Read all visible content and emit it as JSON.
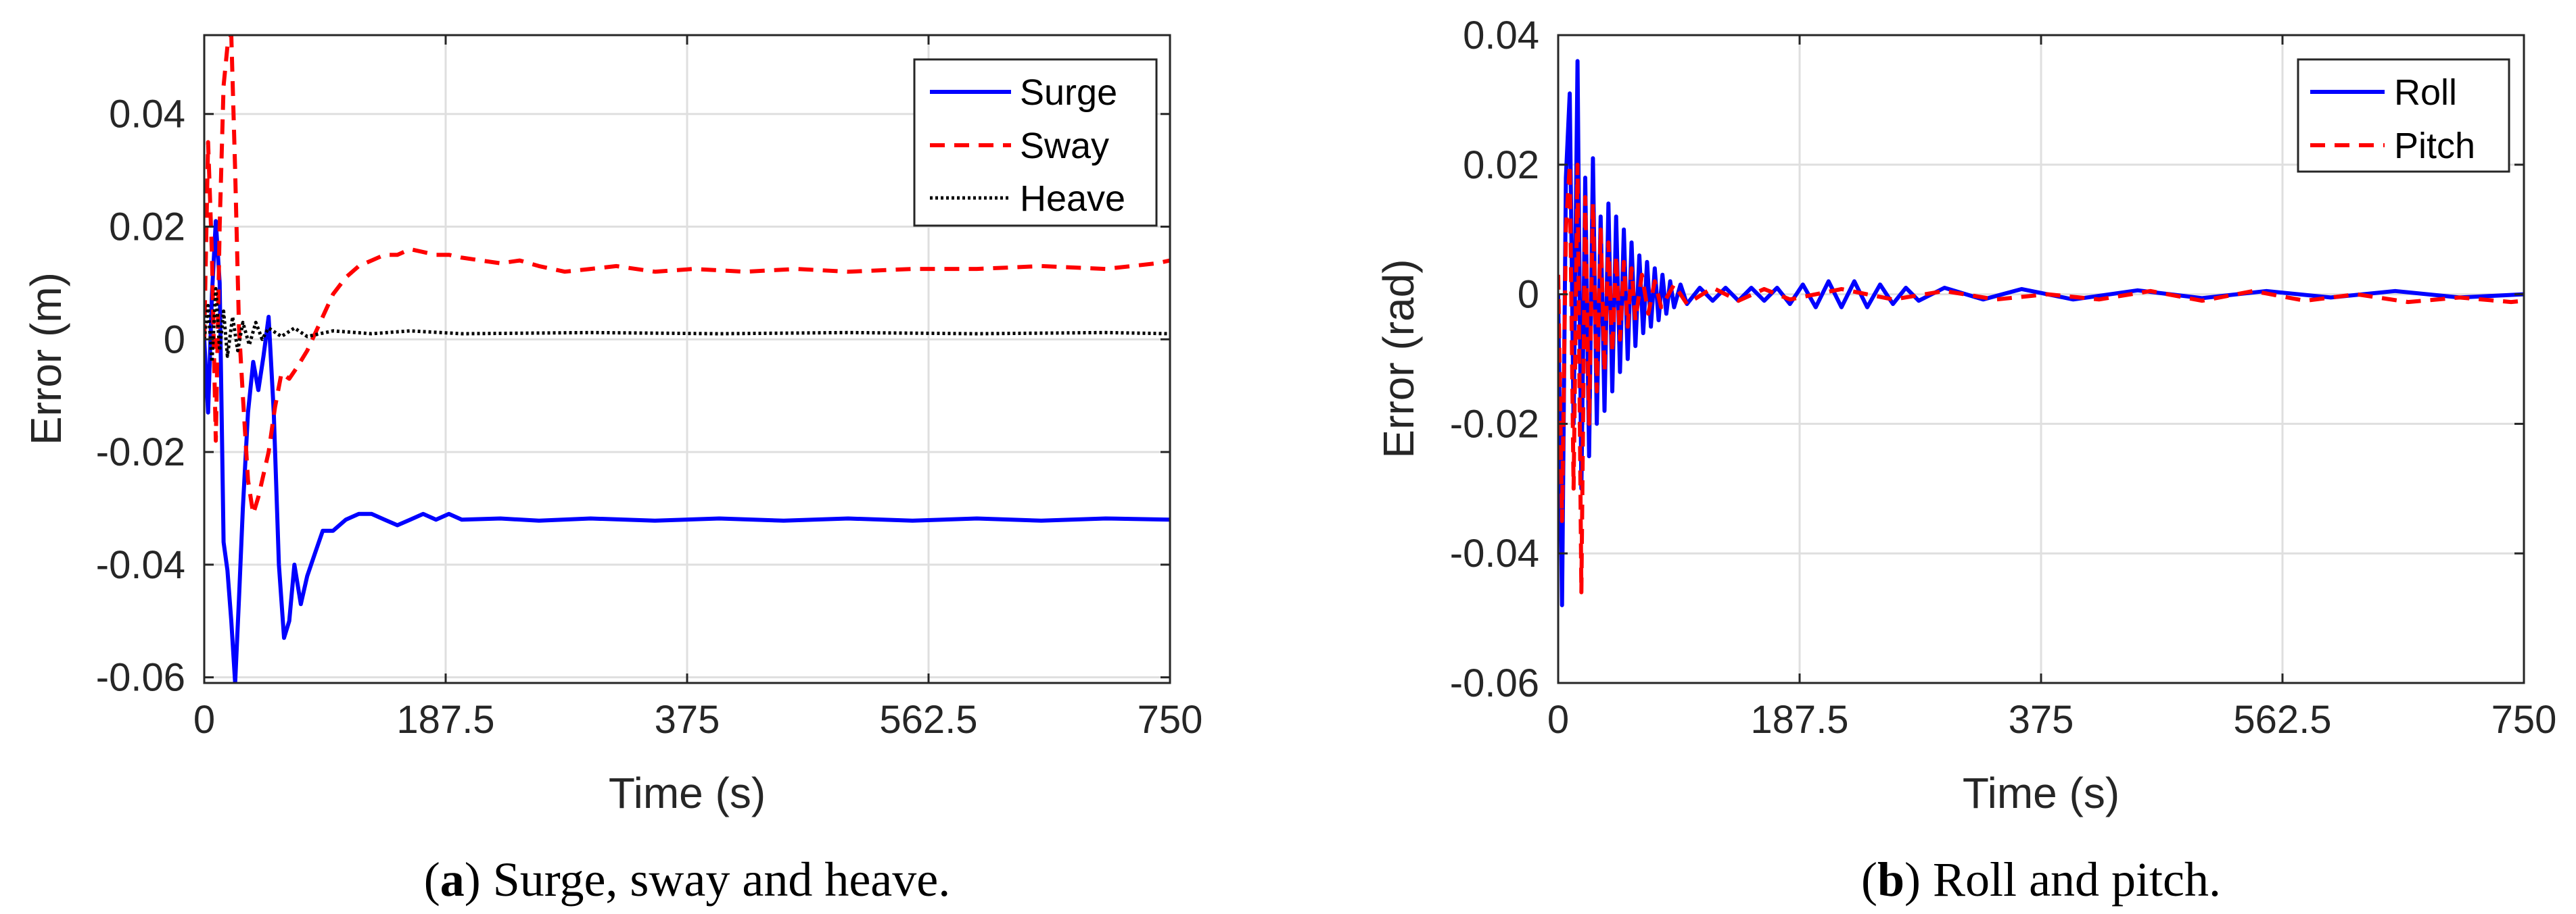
{
  "chart_data": [
    {
      "type": "line",
      "title": "",
      "xlabel": "Time (s)",
      "ylabel": "Error (m)",
      "xlim": [
        0,
        750
      ],
      "ylim": [
        -0.061,
        0.054
      ],
      "xticks": [
        0,
        187.5,
        375,
        562.5,
        750
      ],
      "xticklabels": [
        "0",
        "187.5",
        "375",
        "562.5",
        "750"
      ],
      "yticks": [
        -0.06,
        -0.04,
        -0.02,
        0,
        0.02,
        0.04
      ],
      "yticklabels": [
        "-0.06",
        "-0.04",
        "-0.02",
        "0",
        "0.02",
        "0.04"
      ],
      "grid": true,
      "legend_position": "top-right",
      "caption_tag": "a",
      "caption_text": " Surge, sway and heave.",
      "series": [
        {
          "name": "Surge",
          "color": "#0000ff",
          "style": "solid",
          "points": [
            [
              0,
              0
            ],
            [
              3,
              -0.013
            ],
            [
              6,
              0.008
            ],
            [
              9,
              0.021
            ],
            [
              12,
              0.01
            ],
            [
              15,
              -0.036
            ],
            [
              18,
              -0.041
            ],
            [
              21,
              -0.05
            ],
            [
              24,
              -0.061
            ],
            [
              27,
              -0.046
            ],
            [
              30,
              -0.03
            ],
            [
              34,
              -0.013
            ],
            [
              38,
              -0.004
            ],
            [
              42,
              -0.009
            ],
            [
              46,
              -0.003
            ],
            [
              50,
              0.004
            ],
            [
              54,
              -0.013
            ],
            [
              58,
              -0.04
            ],
            [
              62,
              -0.053
            ],
            [
              66,
              -0.05
            ],
            [
              70,
              -0.04
            ],
            [
              75,
              -0.047
            ],
            [
              80,
              -0.042
            ],
            [
              86,
              -0.038
            ],
            [
              92,
              -0.034
            ],
            [
              100,
              -0.034
            ],
            [
              110,
              -0.032
            ],
            [
              120,
              -0.031
            ],
            [
              130,
              -0.031
            ],
            [
              140,
              -0.032
            ],
            [
              150,
              -0.033
            ],
            [
              160,
              -0.032
            ],
            [
              170,
              -0.031
            ],
            [
              180,
              -0.032
            ],
            [
              190,
              -0.031
            ],
            [
              200,
              -0.032
            ],
            [
              230,
              -0.0318
            ],
            [
              260,
              -0.0322
            ],
            [
              300,
              -0.0318
            ],
            [
              350,
              -0.0322
            ],
            [
              400,
              -0.0318
            ],
            [
              450,
              -0.0322
            ],
            [
              500,
              -0.0318
            ],
            [
              550,
              -0.0322
            ],
            [
              600,
              -0.0318
            ],
            [
              650,
              -0.0322
            ],
            [
              700,
              -0.0318
            ],
            [
              750,
              -0.032
            ]
          ]
        },
        {
          "name": "Sway",
          "color": "#ff0000",
          "style": "dashed",
          "points": [
            [
              0,
              0
            ],
            [
              3,
              0.035
            ],
            [
              6,
              0.015
            ],
            [
              9,
              -0.018
            ],
            [
              12,
              0.02
            ],
            [
              15,
              0.045
            ],
            [
              18,
              0.052
            ],
            [
              21,
              0.054
            ],
            [
              24,
              0.03
            ],
            [
              27,
              0.002
            ],
            [
              30,
              -0.01
            ],
            [
              34,
              -0.025
            ],
            [
              38,
              -0.031
            ],
            [
              42,
              -0.028
            ],
            [
              46,
              -0.024
            ],
            [
              50,
              -0.02
            ],
            [
              55,
              -0.012
            ],
            [
              60,
              -0.006
            ],
            [
              66,
              -0.007
            ],
            [
              72,
              -0.005
            ],
            [
              80,
              -0.002
            ],
            [
              90,
              0.003
            ],
            [
              100,
              0.008
            ],
            [
              110,
              0.011
            ],
            [
              120,
              0.013
            ],
            [
              130,
              0.014
            ],
            [
              140,
              0.015
            ],
            [
              150,
              0.015
            ],
            [
              160,
              0.016
            ],
            [
              170,
              0.0155
            ],
            [
              180,
              0.015
            ],
            [
              190,
              0.015
            ],
            [
              200,
              0.0145
            ],
            [
              215,
              0.014
            ],
            [
              230,
              0.0135
            ],
            [
              245,
              0.014
            ],
            [
              260,
              0.013
            ],
            [
              280,
              0.012
            ],
            [
              300,
              0.0125
            ],
            [
              320,
              0.013
            ],
            [
              350,
              0.012
            ],
            [
              380,
              0.0125
            ],
            [
              420,
              0.012
            ],
            [
              460,
              0.0125
            ],
            [
              500,
              0.012
            ],
            [
              550,
              0.0125
            ],
            [
              600,
              0.0125
            ],
            [
              650,
              0.013
            ],
            [
              700,
              0.0125
            ],
            [
              740,
              0.0135
            ],
            [
              750,
              0.014
            ]
          ]
        },
        {
          "name": "Heave",
          "color": "#000000",
          "style": "dotted",
          "points": [
            [
              0,
              0
            ],
            [
              3,
              0.006
            ],
            [
              6,
              -0.004
            ],
            [
              9,
              0.009
            ],
            [
              12,
              -0.002
            ],
            [
              15,
              0.005
            ],
            [
              18,
              -0.003
            ],
            [
              22,
              0.004
            ],
            [
              26,
              -0.002
            ],
            [
              30,
              0.003
            ],
            [
              35,
              -0.001
            ],
            [
              40,
              0.003
            ],
            [
              45,
              0
            ],
            [
              50,
              0.002
            ],
            [
              60,
              0.0005
            ],
            [
              70,
              0.002
            ],
            [
              80,
              0.0005
            ],
            [
              100,
              0.0015
            ],
            [
              130,
              0.001
            ],
            [
              160,
              0.0015
            ],
            [
              200,
              0.001
            ],
            [
              300,
              0.0012
            ],
            [
              400,
              0.001
            ],
            [
              500,
              0.0012
            ],
            [
              600,
              0.001
            ],
            [
              700,
              0.0012
            ],
            [
              750,
              0.001
            ]
          ]
        }
      ]
    },
    {
      "type": "line",
      "title": "",
      "xlabel": "Time (s)",
      "ylabel": "Error (rad)",
      "xlim": [
        0,
        750
      ],
      "ylim": [
        -0.06,
        0.04
      ],
      "xticks": [
        0,
        187.5,
        375,
        562.5,
        750
      ],
      "xticklabels": [
        "0",
        "187.5",
        "375",
        "562.5",
        "750"
      ],
      "yticks": [
        -0.06,
        -0.04,
        -0.02,
        0,
        0.02,
        0.04
      ],
      "yticklabels": [
        "-0.06",
        "-0.04",
        "-0.02",
        "0",
        "0.02",
        "0.04"
      ],
      "grid": true,
      "legend_position": "top-right",
      "caption_tag": "b",
      "caption_text": " Roll and pitch.",
      "series": [
        {
          "name": "Roll",
          "color": "#0000ff",
          "style": "solid",
          "points": [
            [
              0,
              0
            ],
            [
              3,
              -0.048
            ],
            [
              6,
              0.018
            ],
            [
              9,
              0.031
            ],
            [
              12,
              -0.02
            ],
            [
              15,
              0.036
            ],
            [
              18,
              -0.03
            ],
            [
              21,
              0.018
            ],
            [
              24,
              -0.025
            ],
            [
              27,
              0.021
            ],
            [
              30,
              -0.02
            ],
            [
              33,
              0.012
            ],
            [
              36,
              -0.018
            ],
            [
              39,
              0.014
            ],
            [
              42,
              -0.015
            ],
            [
              45,
              0.012
            ],
            [
              48,
              -0.012
            ],
            [
              51,
              0.01
            ],
            [
              54,
              -0.01
            ],
            [
              57,
              0.008
            ],
            [
              60,
              -0.008
            ],
            [
              63,
              0.006
            ],
            [
              66,
              -0.006
            ],
            [
              69,
              0.005
            ],
            [
              72,
              -0.005
            ],
            [
              75,
              0.004
            ],
            [
              78,
              -0.004
            ],
            [
              81,
              0.003
            ],
            [
              84,
              -0.003
            ],
            [
              87,
              0.002
            ],
            [
              90,
              -0.002
            ],
            [
              95,
              0.0015
            ],
            [
              100,
              -0.0015
            ],
            [
              110,
              0.001
            ],
            [
              120,
              -0.001
            ],
            [
              130,
              0.001
            ],
            [
              140,
              -0.001
            ],
            [
              150,
              0.001
            ],
            [
              160,
              -0.001
            ],
            [
              170,
              0.001
            ],
            [
              180,
              -0.0015
            ],
            [
              190,
              0.0015
            ],
            [
              200,
              -0.002
            ],
            [
              210,
              0.002
            ],
            [
              220,
              -0.002
            ],
            [
              230,
              0.002
            ],
            [
              240,
              -0.002
            ],
            [
              250,
              0.0015
            ],
            [
              260,
              -0.0015
            ],
            [
              270,
              0.001
            ],
            [
              280,
              -0.001
            ],
            [
              300,
              0.001
            ],
            [
              330,
              -0.0008
            ],
            [
              360,
              0.0008
            ],
            [
              400,
              -0.0008
            ],
            [
              450,
              0.0006
            ],
            [
              500,
              -0.0006
            ],
            [
              550,
              0.0005
            ],
            [
              600,
              -0.0005
            ],
            [
              650,
              0.0005
            ],
            [
              700,
              -0.0005
            ],
            [
              750,
              0
            ]
          ]
        },
        {
          "name": "Pitch",
          "color": "#ff0000",
          "style": "dashed",
          "points": [
            [
              0,
              0.003
            ],
            [
              3,
              -0.035
            ],
            [
              6,
              0.01
            ],
            [
              9,
              0.02
            ],
            [
              12,
              -0.03
            ],
            [
              15,
              0.02
            ],
            [
              18,
              -0.046
            ],
            [
              21,
              0.015
            ],
            [
              24,
              -0.02
            ],
            [
              27,
              0.014
            ],
            [
              30,
              -0.015
            ],
            [
              33,
              0.01
            ],
            [
              36,
              -0.012
            ],
            [
              39,
              0.008
            ],
            [
              42,
              -0.009
            ],
            [
              45,
              0.006
            ],
            [
              48,
              -0.007
            ],
            [
              51,
              0.005
            ],
            [
              54,
              -0.005
            ],
            [
              57,
              0.004
            ],
            [
              60,
              -0.004
            ],
            [
              65,
              0.003
            ],
            [
              70,
              -0.003
            ],
            [
              75,
              0.002
            ],
            [
              80,
              -0.002
            ],
            [
              90,
              0.0015
            ],
            [
              100,
              -0.0015
            ],
            [
              120,
              0.001
            ],
            [
              140,
              -0.001
            ],
            [
              160,
              0.0008
            ],
            [
              180,
              -0.0008
            ],
            [
              220,
              0.0008
            ],
            [
              260,
              -0.0008
            ],
            [
              300,
              0.0005
            ],
            [
              340,
              -0.0008
            ],
            [
              380,
              0
            ],
            [
              420,
              -0.0008
            ],
            [
              460,
              0.0005
            ],
            [
              500,
              -0.001
            ],
            [
              540,
              0.0005
            ],
            [
              580,
              -0.001
            ],
            [
              620,
              0
            ],
            [
              660,
              -0.0012
            ],
            [
              700,
              -0.0005
            ],
            [
              740,
              -0.0012
            ],
            [
              750,
              -0.001
            ]
          ]
        }
      ]
    }
  ]
}
